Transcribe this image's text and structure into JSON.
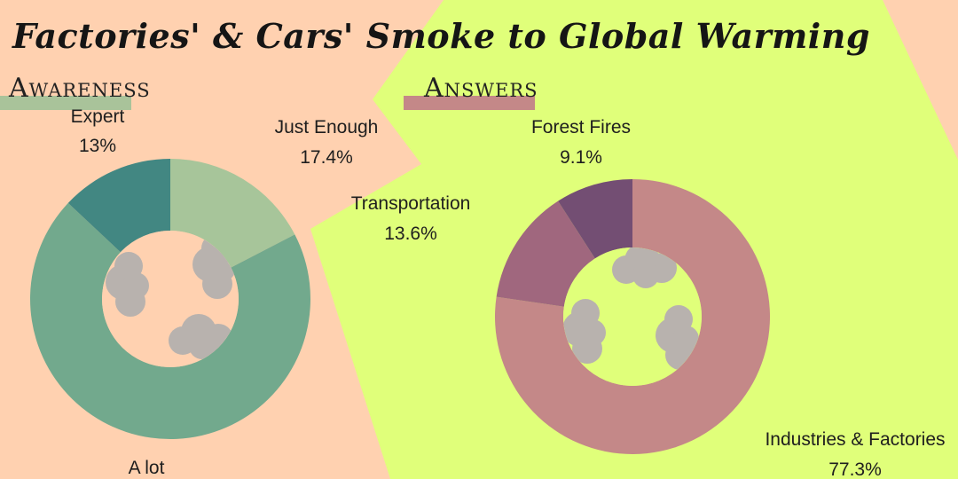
{
  "title": "Factories' & Cars' Smoke to Global Warming",
  "sections": {
    "awareness": "Awareness",
    "answers": "Answers"
  },
  "colors": {
    "background": "#ffd1b0",
    "green_panel": "#e0ff7a",
    "smoke": "#b8b2ae",
    "awareness_bar": "#a9c39a",
    "answers_bar": "#c48888"
  },
  "chart_data": [
    {
      "type": "pie",
      "donut": true,
      "title": "Awareness",
      "slices": [
        {
          "label": "Just Enough",
          "value": 17.4,
          "value_label": "17.4%",
          "color": "#a7c59a"
        },
        {
          "label": "A lot",
          "value": 69.6,
          "value_label": "",
          "color": "#72a98d"
        },
        {
          "label": "Expert",
          "value": 13,
          "value_label": "13%",
          "color": "#428782"
        }
      ]
    },
    {
      "type": "pie",
      "donut": true,
      "title": "Answers",
      "slices": [
        {
          "label": "Industries & Factories",
          "value": 77.3,
          "value_label": "77.3%",
          "color": "#c48888"
        },
        {
          "label": "Transportation",
          "value": 13.6,
          "value_label": "13.6%",
          "color": "#a0677e"
        },
        {
          "label": "Forest Fires",
          "value": 9.1,
          "value_label": "9.1%",
          "color": "#734e73"
        }
      ]
    }
  ]
}
